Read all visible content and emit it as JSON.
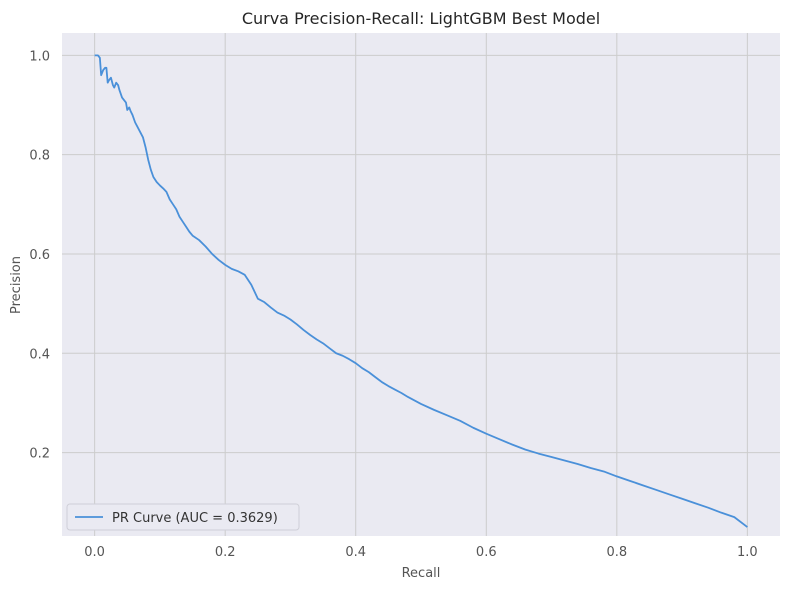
{
  "chart_data": {
    "type": "line",
    "title": "Curva Precision-Recall: LightGBM Best Model",
    "xlabel": "Recall",
    "ylabel": "Precision",
    "xlim": [
      -0.05,
      1.05
    ],
    "ylim": [
      0.032,
      1.045
    ],
    "x_ticks": [
      0.0,
      0.2,
      0.4,
      0.6,
      0.8,
      1.0
    ],
    "x_tick_labels": [
      "0.0",
      "0.2",
      "0.4",
      "0.6",
      "0.8",
      "1.0"
    ],
    "y_ticks": [
      0.2,
      0.4,
      0.6,
      0.8,
      1.0
    ],
    "y_tick_labels": [
      "0.2",
      "0.4",
      "0.6",
      "0.8",
      "1.0"
    ],
    "grid": true,
    "legend_position": "lower-left",
    "colors": {
      "plot_background": "#eaeaf2",
      "grid": "#cccccc",
      "line": "#4a90d9"
    },
    "series": [
      {
        "name": "PR Curve (AUC = 0.3629)",
        "x": [
          0.0,
          0.005,
          0.008,
          0.01,
          0.013,
          0.016,
          0.018,
          0.02,
          0.022,
          0.025,
          0.028,
          0.03,
          0.033,
          0.036,
          0.038,
          0.042,
          0.045,
          0.048,
          0.05,
          0.053,
          0.055,
          0.058,
          0.062,
          0.066,
          0.07,
          0.074,
          0.078,
          0.082,
          0.086,
          0.09,
          0.095,
          0.1,
          0.105,
          0.11,
          0.115,
          0.12,
          0.125,
          0.13,
          0.135,
          0.14,
          0.145,
          0.15,
          0.16,
          0.17,
          0.18,
          0.19,
          0.2,
          0.21,
          0.22,
          0.23,
          0.24,
          0.25,
          0.26,
          0.27,
          0.28,
          0.29,
          0.3,
          0.31,
          0.32,
          0.33,
          0.34,
          0.35,
          0.36,
          0.37,
          0.38,
          0.39,
          0.4,
          0.41,
          0.42,
          0.43,
          0.44,
          0.45,
          0.46,
          0.47,
          0.48,
          0.49,
          0.5,
          0.52,
          0.54,
          0.56,
          0.58,
          0.6,
          0.62,
          0.64,
          0.66,
          0.68,
          0.7,
          0.72,
          0.74,
          0.76,
          0.78,
          0.8,
          0.82,
          0.84,
          0.86,
          0.88,
          0.9,
          0.92,
          0.94,
          0.96,
          0.98,
          1.0
        ],
        "y": [
          1.0,
          1.0,
          0.995,
          0.96,
          0.97,
          0.975,
          0.975,
          0.945,
          0.95,
          0.955,
          0.94,
          0.935,
          0.945,
          0.94,
          0.93,
          0.915,
          0.91,
          0.905,
          0.89,
          0.895,
          0.888,
          0.88,
          0.865,
          0.855,
          0.845,
          0.835,
          0.815,
          0.79,
          0.77,
          0.755,
          0.745,
          0.738,
          0.732,
          0.725,
          0.71,
          0.7,
          0.69,
          0.675,
          0.665,
          0.655,
          0.645,
          0.637,
          0.628,
          0.615,
          0.6,
          0.588,
          0.578,
          0.57,
          0.565,
          0.558,
          0.538,
          0.51,
          0.503,
          0.492,
          0.482,
          0.476,
          0.468,
          0.458,
          0.447,
          0.437,
          0.428,
          0.42,
          0.41,
          0.4,
          0.395,
          0.388,
          0.38,
          0.37,
          0.362,
          0.352,
          0.342,
          0.334,
          0.327,
          0.32,
          0.312,
          0.305,
          0.298,
          0.286,
          0.275,
          0.264,
          0.25,
          0.238,
          0.227,
          0.216,
          0.206,
          0.198,
          0.191,
          0.184,
          0.177,
          0.169,
          0.162,
          0.152,
          0.143,
          0.134,
          0.125,
          0.116,
          0.107,
          0.098,
          0.089,
          0.079,
          0.07,
          0.05
        ]
      }
    ]
  }
}
